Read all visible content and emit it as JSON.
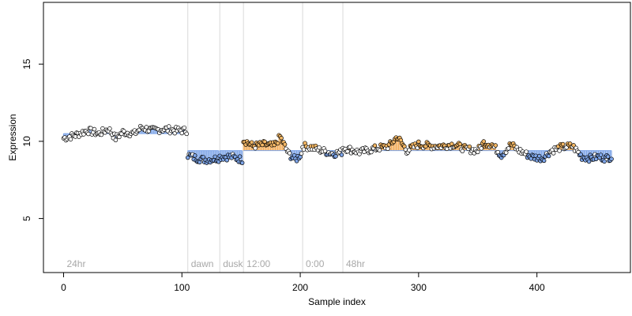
{
  "chart_data": {
    "type": "scatter",
    "xlabel": "Sample index",
    "ylabel": "Expression",
    "xlim": [
      -17,
      479
    ],
    "ylim": [
      1.5,
      19
    ],
    "x_ticks": [
      0,
      100,
      200,
      300,
      400
    ],
    "y_ticks": [
      5,
      10,
      15
    ],
    "dividers": [
      105,
      132,
      152,
      202,
      236
    ],
    "groups": [
      {
        "label": "24hr",
        "start": 0,
        "end": 104,
        "baseline": 10.5
      },
      {
        "label": "dawn",
        "start": 105,
        "end": 131,
        "baseline": 9.4
      },
      {
        "label": "dusk",
        "start": 132,
        "end": 151,
        "baseline": 9.4
      },
      {
        "label": "12:00",
        "start": 152,
        "end": 201,
        "baseline": 9.4
      },
      {
        "label": "0:00",
        "start": 202,
        "end": 235,
        "baseline": 9.4
      },
      {
        "label": "48hr",
        "start": 236,
        "end": 463,
        "baseline": 9.4
      }
    ],
    "anchors": [
      [
        0,
        10.2
      ],
      [
        10,
        10.4
      ],
      [
        20,
        10.7
      ],
      [
        30,
        10.5
      ],
      [
        38,
        10.8
      ],
      [
        44,
        10.2
      ],
      [
        50,
        10.6
      ],
      [
        60,
        10.5
      ],
      [
        66,
        10.9
      ],
      [
        75,
        10.7
      ],
      [
        85,
        10.8
      ],
      [
        95,
        10.7
      ],
      [
        104,
        10.7
      ],
      [
        105,
        9.1
      ],
      [
        112,
        8.9
      ],
      [
        120,
        8.8
      ],
      [
        131,
        8.9
      ],
      [
        132,
        9.0
      ],
      [
        142,
        9.0
      ],
      [
        151,
        8.8
      ],
      [
        152,
        10.1
      ],
      [
        160,
        9.7
      ],
      [
        170,
        9.8
      ],
      [
        178,
        9.7
      ],
      [
        183,
        10.3
      ],
      [
        190,
        9.2
      ],
      [
        196,
        8.8
      ],
      [
        201,
        9.2
      ],
      [
        202,
        9.7
      ],
      [
        210,
        9.6
      ],
      [
        218,
        9.4
      ],
      [
        228,
        9.2
      ],
      [
        235,
        9.3
      ],
      [
        236,
        9.6
      ],
      [
        250,
        9.3
      ],
      [
        262,
        9.5
      ],
      [
        275,
        9.7
      ],
      [
        282,
        10.3
      ],
      [
        290,
        9.4
      ],
      [
        300,
        9.8
      ],
      [
        310,
        9.7
      ],
      [
        320,
        9.7
      ],
      [
        330,
        9.8
      ],
      [
        340,
        9.5
      ],
      [
        350,
        9.4
      ],
      [
        355,
        9.9
      ],
      [
        362,
        9.8
      ],
      [
        370,
        9.1
      ],
      [
        378,
        9.8
      ],
      [
        385,
        9.4
      ],
      [
        395,
        9.0
      ],
      [
        405,
        8.9
      ],
      [
        412,
        9.4
      ],
      [
        420,
        9.6
      ],
      [
        430,
        9.7
      ],
      [
        438,
        9.0
      ],
      [
        445,
        8.9
      ],
      [
        452,
        9.0
      ],
      [
        458,
        8.9
      ],
      [
        463,
        9.0
      ]
    ],
    "colors": {
      "point_fill_above": "#f5b865",
      "point_fill_below": "#7ea5e8",
      "point_fill_plain": "#ffffff",
      "point_stroke": "#000000",
      "stem_above": "#f2ad5a",
      "stem_below": "#7ea5e8",
      "divider": "#d9d9d9",
      "group_label": "#a8a8a8"
    }
  }
}
